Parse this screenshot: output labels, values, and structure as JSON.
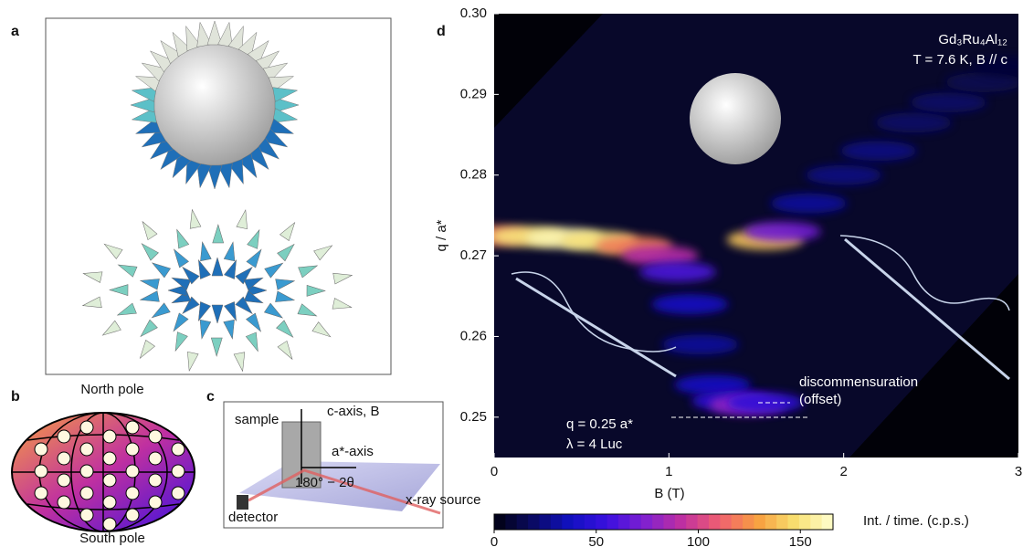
{
  "panels": {
    "a": {
      "label": "a"
    },
    "b": {
      "label": "b",
      "top": "North pole",
      "bottom": "South pole"
    },
    "c": {
      "label": "c",
      "sample": "sample",
      "c_axis": "c-axis, B",
      "a_axis": "a*-axis",
      "angle": "180° − 2θ",
      "detector": "detector",
      "source": "x-ray source"
    }
  },
  "chart_data": {
    "type": "heatmap",
    "panel_label": "d",
    "annotations": [
      "Gd₃Ru₄Al₁₂",
      "T = 7.6 K, B // c",
      "discommensuration",
      "(offset)",
      "q = 0.25 a*",
      "λ = 4 Luc"
    ],
    "x_label": "B (T)",
    "y_label": "q / a*",
    "colorbar_label": "Int. / time. (c.p.s.)",
    "x": [
      0,
      0.2,
      0.4,
      0.6,
      0.8,
      0.95,
      1.05,
      1.12,
      1.18,
      1.25,
      1.35,
      1.45,
      1.55,
      1.55,
      1.65,
      1.8,
      2.0,
      2.2,
      2.4,
      2.6,
      2.8,
      2.95
    ],
    "y": [
      0.2725,
      0.2724,
      0.2722,
      0.2718,
      0.2712,
      0.27,
      0.268,
      0.264,
      0.259,
      0.254,
      0.252,
      0.2515,
      0.2518,
      0.272,
      0.273,
      0.2765,
      0.28,
      0.283,
      0.2865,
      0.289,
      0.2915,
      0.2935
    ],
    "values": [
      120,
      150,
      160,
      150,
      120,
      90,
      60,
      40,
      30,
      40,
      50,
      80,
      50,
      140,
      70,
      30,
      25,
      25,
      20,
      20,
      15,
      10
    ],
    "xlim": [
      0,
      3
    ],
    "xticks": [
      0,
      1,
      2,
      3
    ],
    "ylim": [
      0.245,
      0.3
    ],
    "yticks": [
      0.25,
      0.26,
      0.27,
      0.28,
      0.29,
      {
        "value": 0.3,
        "label": "0.30"
      }
    ],
    "clim": [
      0,
      166
    ],
    "cticks": [
      0,
      50,
      100,
      150
    ],
    "colormap": [
      "#000010",
      "#0a0a60",
      "#1010c0",
      "#3a10e0",
      "#8020d0",
      "#c030a0",
      "#f06070",
      "#f8a040",
      "#f8e070",
      "#ffffd0"
    ],
    "background": "#08082a"
  }
}
